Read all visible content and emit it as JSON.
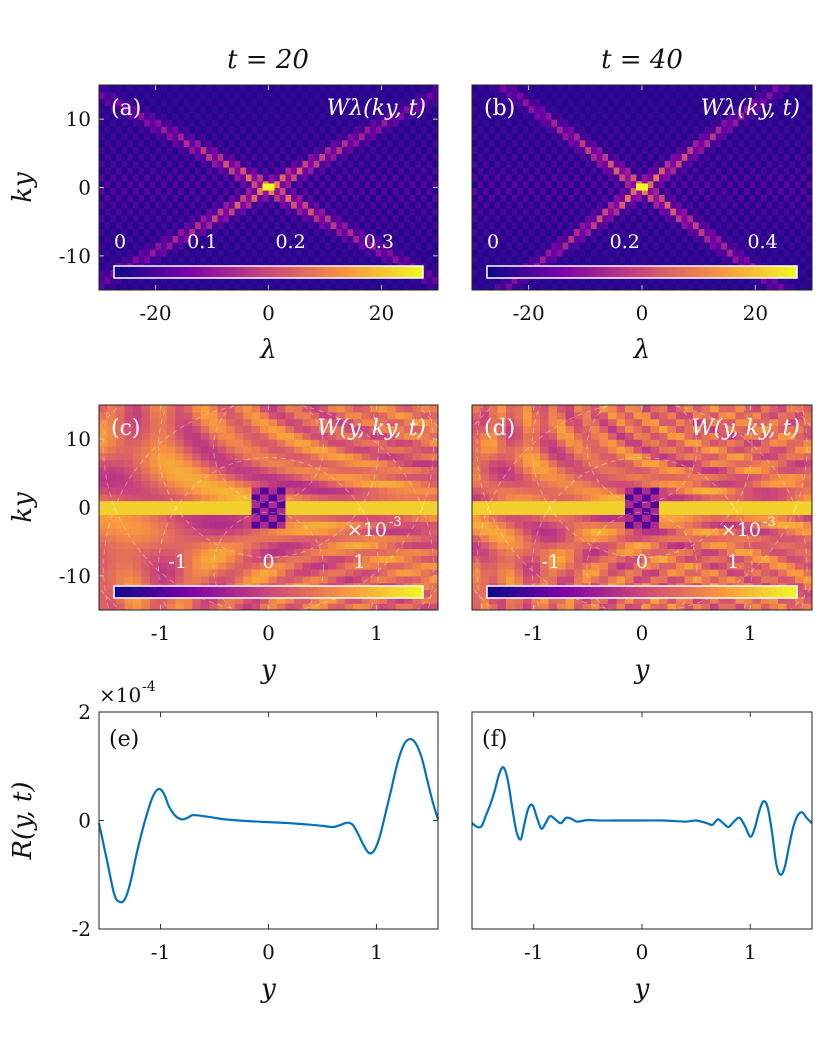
{
  "figure": {
    "column_titles": [
      "t = 20",
      "t = 40"
    ]
  },
  "chart_data": [
    {
      "id": "a",
      "type": "heatmap",
      "panel_label": "(a)",
      "annotation": "Wλ(ky, t)",
      "xlabel": "λ",
      "ylabel": "ky",
      "xlim": [
        -30,
        30
      ],
      "ylim": [
        -15,
        15
      ],
      "x_ticks": [
        -20,
        0,
        20
      ],
      "x_tick_labels": [
        "-20",
        "0",
        "20"
      ],
      "y_ticks": [
        -10,
        0,
        10
      ],
      "y_tick_labels": [
        "-10",
        "0",
        "10"
      ],
      "colormap": "plasma",
      "colorbar": {
        "range": [
          0,
          0.35
        ],
        "ticks": [
          0,
          0.1,
          0.2,
          0.3
        ],
        "tick_labels": [
          "0",
          "0.1",
          "0.2",
          "0.3"
        ]
      },
      "peak": {
        "lambda": 0,
        "ky": 0,
        "value": 0.35
      },
      "pattern": "X-shaped diagonal streaks through origin, weak checkerboard background"
    },
    {
      "id": "b",
      "type": "heatmap",
      "panel_label": "(b)",
      "annotation": "Wλ(ky, t)",
      "xlabel": "λ",
      "ylabel": "",
      "xlim": [
        -30,
        30
      ],
      "ylim": [
        -15,
        15
      ],
      "x_ticks": [
        -20,
        0,
        20
      ],
      "x_tick_labels": [
        "-20",
        "0",
        "20"
      ],
      "y_ticks": [],
      "y_tick_labels": [],
      "colormap": "plasma",
      "colorbar": {
        "range": [
          0,
          0.45
        ],
        "ticks": [
          0,
          0.2,
          0.4
        ],
        "tick_labels": [
          "0",
          "0.2",
          "0.4"
        ]
      },
      "peak": {
        "lambda": 0,
        "ky": 0,
        "value": 0.45
      },
      "pattern": "X-shaped diagonal streaks through origin, steeper than (a)"
    },
    {
      "id": "c",
      "type": "heatmap",
      "panel_label": "(c)",
      "annotation": "W(y, ky, t)",
      "xlabel": "y",
      "ylabel": "ky",
      "xlim": [
        -1.57,
        1.57
      ],
      "ylim": [
        -15,
        15
      ],
      "x_ticks": [
        -1,
        0,
        1
      ],
      "x_tick_labels": [
        "-1",
        "0",
        "1"
      ],
      "y_ticks": [
        -10,
        0,
        10
      ],
      "y_tick_labels": [
        "-10",
        "0",
        "10"
      ],
      "colormap": "plasma",
      "colorbar": {
        "range": [
          -1.7,
          1.7
        ],
        "ticks": [
          -1,
          0,
          1
        ],
        "tick_labels": [
          "-1",
          "0",
          "1"
        ],
        "scale_label": "×10",
        "scale_exp": "-3"
      },
      "pattern": "bright horizontal band at ky = 0, oscillating fringes near y = 0 and edges"
    },
    {
      "id": "d",
      "type": "heatmap",
      "panel_label": "(d)",
      "annotation": "W(y, ky, t)",
      "xlabel": "y",
      "ylabel": "",
      "xlim": [
        -1.57,
        1.57
      ],
      "ylim": [
        -15,
        15
      ],
      "x_ticks": [
        -1,
        0,
        1
      ],
      "x_tick_labels": [
        "-1",
        "0",
        "1"
      ],
      "y_ticks": [],
      "y_tick_labels": [],
      "colormap": "plasma",
      "colorbar": {
        "range": [
          -1.7,
          1.7
        ],
        "ticks": [
          -1,
          0,
          1
        ],
        "tick_labels": [
          "-1",
          "0",
          "1"
        ],
        "scale_label": "×10",
        "scale_exp": "-3"
      },
      "pattern": "bright horizontal band at ky = 0, denser oscillating fringes than (c)"
    },
    {
      "id": "e",
      "type": "line",
      "panel_label": "(e)",
      "xlabel": "y",
      "ylabel": "R(y, t)",
      "y_scale_label": "×10",
      "y_scale_exp": "-4",
      "xlim": [
        -1.57,
        1.57
      ],
      "ylim": [
        -2,
        2
      ],
      "x_ticks": [
        -1,
        0,
        1
      ],
      "x_tick_labels": [
        "-1",
        "0",
        "1"
      ],
      "y_ticks": [
        -2,
        0,
        2
      ],
      "y_tick_labels": [
        "-2",
        "0",
        "2"
      ],
      "line_color": "#0072BD",
      "series": [
        {
          "x": [
            -1.57,
            -1.5,
            -1.43,
            -1.38,
            -1.33,
            -1.28,
            -1.22,
            -1.15,
            -1.08,
            -1.02,
            -0.97,
            -0.92,
            -0.86,
            -0.8,
            -0.75,
            -0.7,
            -0.6,
            -0.5,
            -0.4,
            -0.2,
            0,
            0.2,
            0.4,
            0.5,
            0.6,
            0.67,
            0.73,
            0.78,
            0.83,
            0.88,
            0.93,
            0.98,
            1.03,
            1.08,
            1.14,
            1.2,
            1.26,
            1.32,
            1.37,
            1.42,
            1.47,
            1.52,
            1.57
          ],
          "y": [
            -0.05,
            -0.7,
            -1.35,
            -1.5,
            -1.45,
            -1.15,
            -0.6,
            -0.05,
            0.4,
            0.58,
            0.5,
            0.25,
            0.08,
            0.02,
            0.05,
            0.1,
            0.08,
            0.05,
            0.02,
            -0.01,
            -0.03,
            -0.05,
            -0.08,
            -0.1,
            -0.12,
            -0.08,
            -0.04,
            -0.08,
            -0.25,
            -0.45,
            -0.6,
            -0.55,
            -0.3,
            0.1,
            0.6,
            1.1,
            1.42,
            1.5,
            1.4,
            1.15,
            0.75,
            0.35,
            0.02
          ]
        }
      ]
    },
    {
      "id": "f",
      "type": "line",
      "panel_label": "(f)",
      "xlabel": "y",
      "ylabel": "",
      "xlim": [
        -1.57,
        1.57
      ],
      "ylim": [
        -2,
        2
      ],
      "x_ticks": [
        -1,
        0,
        1
      ],
      "x_tick_labels": [
        "-1",
        "0",
        "1"
      ],
      "y_ticks": [],
      "y_tick_labels": [],
      "line_color": "#0072BD",
      "series": [
        {
          "x": [
            -1.57,
            -1.52,
            -1.48,
            -1.44,
            -1.4,
            -1.36,
            -1.32,
            -1.28,
            -1.24,
            -1.2,
            -1.16,
            -1.12,
            -1.09,
            -1.05,
            -1.01,
            -0.97,
            -0.93,
            -0.89,
            -0.85,
            -0.8,
            -0.75,
            -0.7,
            -0.65,
            -0.6,
            -0.5,
            -0.4,
            -0.2,
            0,
            0.2,
            0.4,
            0.5,
            0.6,
            0.65,
            0.7,
            0.75,
            0.8,
            0.85,
            0.9,
            0.95,
            1.0,
            1.04,
            1.08,
            1.12,
            1.16,
            1.2,
            1.24,
            1.28,
            1.32,
            1.36,
            1.4,
            1.44,
            1.48,
            1.52,
            1.57
          ],
          "y": [
            -0.05,
            -0.12,
            -0.1,
            0.1,
            0.3,
            0.55,
            0.85,
            0.98,
            0.75,
            0.25,
            -0.2,
            -0.35,
            -0.1,
            0.22,
            0.28,
            0.05,
            -0.15,
            -0.05,
            0.08,
            0.02,
            -0.05,
            0.05,
            0.03,
            -0.02,
            0.01,
            0.0,
            0.0,
            0.0,
            0.0,
            -0.02,
            0.0,
            -0.05,
            -0.08,
            0.02,
            -0.05,
            -0.12,
            -0.02,
            0.05,
            -0.1,
            -0.3,
            -0.15,
            0.15,
            0.35,
            0.25,
            -0.2,
            -0.8,
            -1.0,
            -0.85,
            -0.45,
            -0.1,
            0.1,
            0.15,
            0.05,
            -0.05
          ]
        }
      ]
    }
  ]
}
